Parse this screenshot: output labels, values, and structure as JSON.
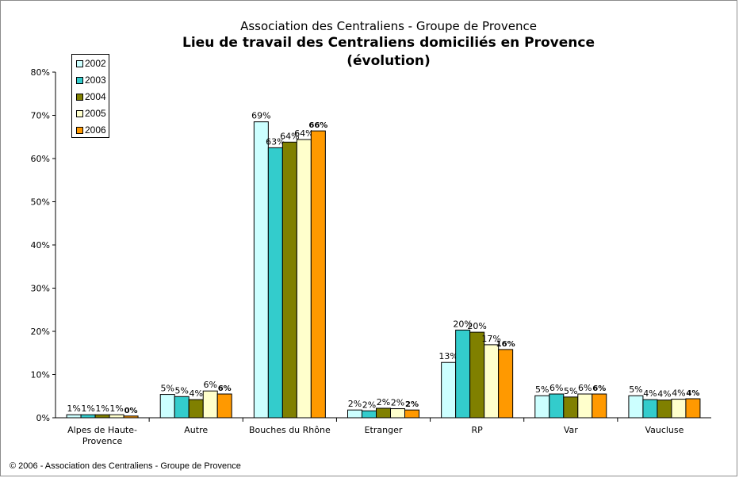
{
  "header": {
    "subtitle": "Association des Centraliens - Groupe de Provence",
    "title_line1": "Lieu de travail des Centraliens domiciliés en Provence",
    "title_line2": "(évolution)"
  },
  "footer": {
    "text": "© 2006 - Association des Centraliens - Groupe de Provence"
  },
  "chart_data": {
    "type": "bar",
    "categories": [
      "Alpes de Haute-Provence",
      "Autre",
      "Bouches du Rhône",
      "Etranger",
      "RP",
      "Var",
      "Vaucluse"
    ],
    "category_label_lines": [
      [
        "Alpes de Haute-",
        "Provence"
      ],
      [
        "Autre"
      ],
      [
        "Bouches du Rhône"
      ],
      [
        "Etranger"
      ],
      [
        "RP"
      ],
      [
        "Var"
      ],
      [
        "Vaucluse"
      ]
    ],
    "series": [
      {
        "name": "2002",
        "color": "#ccffff",
        "values": [
          0.7,
          5.4,
          68.5,
          1.8,
          12.8,
          5.1,
          5.1
        ],
        "labels": [
          "1%",
          "5%",
          "69%",
          "2%",
          "13%",
          "5%",
          "5%"
        ]
      },
      {
        "name": "2003",
        "color": "#33cccc",
        "values": [
          0.7,
          4.9,
          62.5,
          1.6,
          20.3,
          5.5,
          4.2
        ],
        "labels": [
          "1%",
          "5%",
          "63%",
          "2%",
          "20%",
          "6%",
          "4%"
        ]
      },
      {
        "name": "2004",
        "color": "#808000",
        "values": [
          0.7,
          4.2,
          63.8,
          2.2,
          19.8,
          4.8,
          4.1
        ],
        "labels": [
          "1%",
          "4%",
          "64%",
          "2%",
          "20%",
          "5%",
          "4%"
        ]
      },
      {
        "name": "2005",
        "color": "#ffffcc",
        "values": [
          0.7,
          6.2,
          64.4,
          2.1,
          16.9,
          5.5,
          4.3
        ],
        "labels": [
          "1%",
          "6%",
          "64%",
          "2%",
          "17%",
          "6%",
          "4%"
        ]
      },
      {
        "name": "2006",
        "color": "#ff9900",
        "values": [
          0.4,
          5.5,
          66.4,
          1.8,
          15.8,
          5.5,
          4.4
        ],
        "labels": [
          "0%",
          "6%",
          "66%",
          "2%",
          "16%",
          "6%",
          "4%"
        ]
      }
    ],
    "y_ticks": [
      "0%",
      "10%",
      "20%",
      "30%",
      "40%",
      "50%",
      "60%",
      "70%",
      "80%"
    ],
    "ylim": [
      0,
      80
    ],
    "legend_position": "top-left",
    "grid": false
  }
}
